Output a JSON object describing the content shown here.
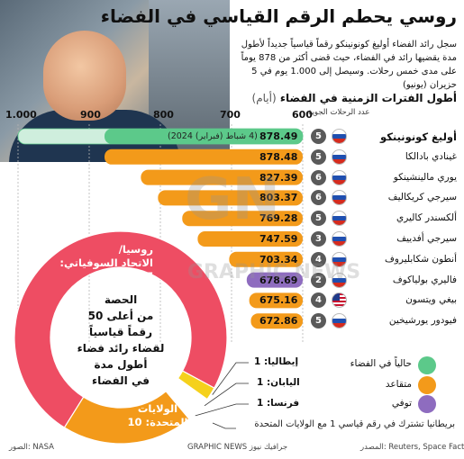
{
  "title": "روسي يحطم الرقم القياسي في الفضاء",
  "lead": "سجل رائد الفضاء أوليغ كونونينكو رقماً قياسياً جديداً لأطول مدة يقضيها رائد في الفضاء، حيث قضى أكثر من 878 يوماً على مدى خمس رحلات. وسيصل إلى 1.000 يوم في 5 حزيران (يونيو)",
  "subtitle": "أطول الفترات الزمنية في الفضاء",
  "subtitle_unit": "(أيام)",
  "missions_header": "عدد الرحلات الجوية",
  "watermark": "GN GRAPHIC NEWS",
  "colors": {
    "active": "#5cc98a",
    "retired": "#f39a1a",
    "deceased": "#8e6cbf",
    "russia": "#ee4d63",
    "usa": "#f39a1a",
    "other_bar": "#f39a1a"
  },
  "chart_data": {
    "type": "bar",
    "orientation": "horizontal",
    "axis": {
      "ticks": [
        "1.000",
        "900",
        "800",
        "700",
        "600"
      ],
      "tick_values": [
        1000,
        900,
        800,
        700,
        600
      ],
      "range": [
        600,
        1000
      ]
    },
    "series": [
      {
        "name": "أوليغ كونونينكو",
        "value": 878.49,
        "label": "878.49",
        "missions": "5",
        "flag": "russia",
        "status": "active",
        "projection": 1000,
        "projection_label": "(4 شباط (فبراير) 2024)"
      },
      {
        "name": "غينادي بادالكا",
        "value": 878.48,
        "label": "878.48",
        "missions": "5",
        "flag": "russia",
        "status": "retired"
      },
      {
        "name": "يوري مالينشينكو",
        "value": 827.39,
        "label": "827.39",
        "missions": "6",
        "flag": "russia",
        "status": "retired"
      },
      {
        "name": "سيرجي كريكاليف",
        "value": 803.37,
        "label": "803.37",
        "missions": "6",
        "flag": "russia",
        "status": "retired"
      },
      {
        "name": "ألكسندر كاليري",
        "value": 769.28,
        "label": "769.28",
        "missions": "5",
        "flag": "russia",
        "status": "retired"
      },
      {
        "name": "سيرجي أفدييف",
        "value": 747.59,
        "label": "747.59",
        "missions": "3",
        "flag": "russia",
        "status": "retired"
      },
      {
        "name": "أنطون شكابليروف",
        "value": 703.34,
        "label": "703.34",
        "missions": "4",
        "flag": "russia",
        "status": "retired"
      },
      {
        "name": "فاليري بولياكوف",
        "value": 678.69,
        "label": "678.69",
        "missions": "2",
        "flag": "russia",
        "status": "deceased"
      },
      {
        "name": "بيغي ويتسون",
        "value": 675.16,
        "label": "675.16",
        "missions": "4",
        "flag": "usa",
        "status": "retired"
      },
      {
        "name": "فيودور يورشيخين",
        "value": 672.86,
        "label": "672.86",
        "missions": "5",
        "flag": "russia",
        "status": "retired"
      }
    ]
  },
  "donut": {
    "center_text": [
      "الحصة",
      "من أعلى 50",
      "رقماً قياسياً",
      "لقضاء رائد فضاء",
      "أطول مدة",
      "في الفضاء"
    ],
    "russia_label": [
      "روسيا/",
      "الاتحاد السوفياتي: 37"
    ],
    "russia_value": 37,
    "usa_label": [
      "الولايات",
      "المتحدة: 10"
    ],
    "usa_value": 10,
    "others": [
      {
        "label": "إيطاليا: 1",
        "value": 1,
        "color": "#f5d11c"
      },
      {
        "label": "اليابان: 1",
        "value": 1,
        "color": "#ffffff"
      },
      {
        "label": "فرنسا: 1",
        "value": 1,
        "color": "#ffffff"
      }
    ],
    "uk_note": "بريطانيا تشترك في رقم قياسي 1 مع الولايات المتحدة"
  },
  "legend": [
    {
      "label": "حالياً في الفضاء",
      "color": "#5cc98a"
    },
    {
      "label": "متقاعد",
      "color": "#f39a1a"
    },
    {
      "label": "توفي",
      "color": "#8e6cbf"
    }
  ],
  "footer": {
    "sources": "المصدر: Reuters, Space Facts",
    "credit": "GRAPHIC NEWS جرافيك نيوز",
    "photo": "الصور: NASA"
  }
}
